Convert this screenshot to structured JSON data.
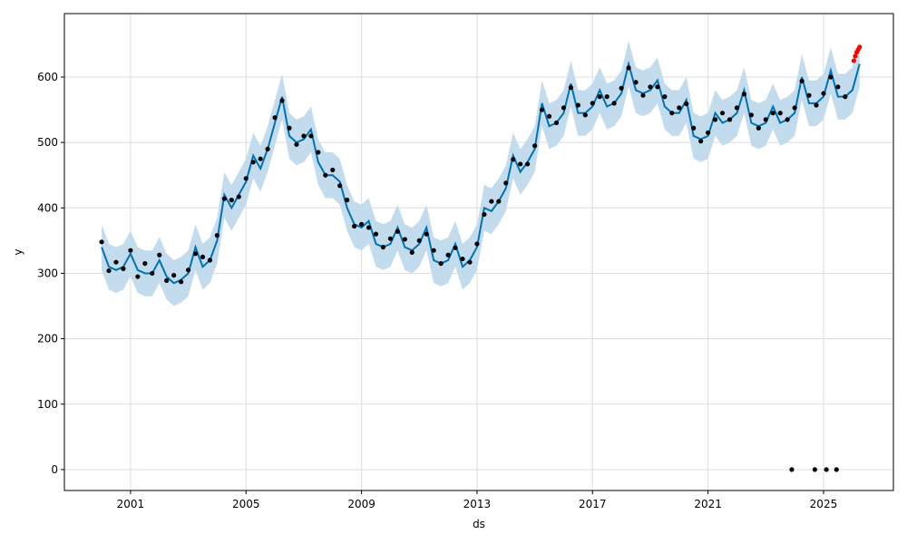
{
  "chart_data": {
    "type": "forecast",
    "x_label": "ds",
    "y_label": "y",
    "xlim": [
      1998.71,
      2027.42
    ],
    "ylim": [
      -32,
      697
    ],
    "xticks": [
      2001,
      2005,
      2009,
      2013,
      2017,
      2021,
      2025
    ],
    "yticks": [
      0,
      100,
      200,
      300,
      400,
      500,
      600
    ],
    "grid": true,
    "x": [
      2000,
      2000.25,
      2000.5,
      2000.75,
      2001,
      2001.25,
      2001.5,
      2001.75,
      2002,
      2002.25,
      2002.5,
      2002.75,
      2003,
      2003.25,
      2003.5,
      2003.75,
      2004,
      2004.25,
      2004.5,
      2004.75,
      2005,
      2005.25,
      2005.5,
      2005.75,
      2006,
      2006.25,
      2006.5,
      2006.75,
      2007,
      2007.25,
      2007.5,
      2007.75,
      2008,
      2008.25,
      2008.5,
      2008.75,
      2009,
      2009.25,
      2009.5,
      2009.75,
      2010,
      2010.25,
      2010.5,
      2010.75,
      2011,
      2011.25,
      2011.5,
      2011.75,
      2012,
      2012.25,
      2012.5,
      2012.75,
      2013,
      2013.25,
      2013.5,
      2013.75,
      2014,
      2014.25,
      2014.5,
      2014.75,
      2015,
      2015.25,
      2015.5,
      2015.75,
      2016,
      2016.25,
      2016.5,
      2016.75,
      2017,
      2017.25,
      2017.5,
      2017.75,
      2018,
      2018.25,
      2018.5,
      2018.75,
      2019,
      2019.25,
      2019.5,
      2019.75,
      2020,
      2020.25,
      2020.5,
      2020.75,
      2021,
      2021.25,
      2021.5,
      2021.75,
      2022,
      2022.25,
      2022.5,
      2022.75,
      2023,
      2023.25,
      2023.5,
      2023.75,
      2024,
      2024.25,
      2024.5,
      2024.75,
      2025,
      2025.25,
      2025.5,
      2025.75,
      2026,
      2026.25
    ],
    "series": [
      {
        "type": "area",
        "color": "#c3dced",
        "lower": [
          305,
          275,
          270,
          275,
          295,
          270,
          265,
          265,
          285,
          260,
          250,
          255,
          265,
          305,
          275,
          285,
          315,
          385,
          365,
          385,
          405,
          445,
          425,
          455,
          495,
          535,
          475,
          465,
          470,
          485,
          435,
          415,
          415,
          405,
          365,
          340,
          335,
          345,
          310,
          305,
          310,
          335,
          305,
          300,
          310,
          335,
          285,
          280,
          285,
          310,
          275,
          285,
          305,
          365,
          360,
          375,
          395,
          445,
          420,
          435,
          455,
          525,
          490,
          495,
          510,
          555,
          510,
          510,
          520,
          545,
          520,
          525,
          540,
          585,
          545,
          540,
          545,
          560,
          520,
          510,
          510,
          530,
          475,
          470,
          475,
          510,
          495,
          500,
          510,
          545,
          495,
          490,
          495,
          520,
          495,
          500,
          510,
          565,
          525,
          525,
          535,
          575,
          535,
          535,
          545,
          585
        ],
        "upper": [
          375,
          345,
          340,
          345,
          365,
          340,
          335,
          335,
          355,
          330,
          320,
          325,
          335,
          375,
          345,
          355,
          385,
          455,
          435,
          455,
          475,
          515,
          495,
          525,
          565,
          605,
          545,
          535,
          540,
          555,
          505,
          485,
          485,
          475,
          435,
          410,
          405,
          415,
          380,
          375,
          380,
          405,
          375,
          370,
          380,
          405,
          355,
          350,
          355,
          380,
          345,
          355,
          375,
          435,
          430,
          445,
          465,
          515,
          490,
          505,
          525,
          595,
          560,
          565,
          580,
          625,
          580,
          580,
          590,
          615,
          590,
          595,
          610,
          655,
          615,
          610,
          615,
          630,
          590,
          580,
          580,
          600,
          545,
          540,
          545,
          580,
          565,
          570,
          580,
          615,
          565,
          560,
          565,
          590,
          565,
          570,
          580,
          635,
          595,
          595,
          605,
          645,
          605,
          605,
          615,
          655
        ]
      },
      {
        "type": "line",
        "color": "#0072B2",
        "values": [
          340,
          310,
          305,
          310,
          330,
          305,
          300,
          300,
          320,
          295,
          285,
          290,
          300,
          340,
          310,
          320,
          350,
          420,
          400,
          420,
          440,
          480,
          460,
          490,
          530,
          570,
          510,
          500,
          505,
          520,
          470,
          450,
          450,
          440,
          400,
          375,
          370,
          380,
          345,
          340,
          345,
          370,
          340,
          335,
          345,
          370,
          320,
          315,
          320,
          345,
          310,
          320,
          340,
          400,
          395,
          410,
          430,
          480,
          455,
          470,
          490,
          560,
          525,
          530,
          545,
          590,
          545,
          545,
          555,
          580,
          555,
          560,
          575,
          620,
          580,
          575,
          580,
          595,
          555,
          545,
          545,
          565,
          510,
          505,
          510,
          545,
          530,
          535,
          545,
          580,
          530,
          525,
          530,
          555,
          530,
          535,
          545,
          600,
          560,
          560,
          570,
          610,
          570,
          570,
          580,
          620
        ]
      },
      {
        "type": "scatter",
        "color": "#000000",
        "values": [
          348,
          304,
          317,
          307,
          335,
          295,
          315,
          300,
          328,
          289,
          297,
          287,
          305,
          330,
          325,
          320,
          358,
          414,
          412,
          417,
          445,
          470,
          475,
          490,
          538,
          564,
          522,
          497,
          510,
          510,
          485,
          450,
          458,
          434,
          412,
          372,
          375,
          370,
          360,
          340,
          353,
          364,
          352,
          332,
          350,
          360,
          335,
          315,
          328,
          339,
          322,
          317,
          345,
          390,
          410,
          410,
          438,
          474,
          467,
          467,
          495,
          550,
          540,
          530,
          553,
          584,
          557,
          542,
          560,
          570,
          570,
          560,
          583,
          614,
          592,
          572,
          585,
          585,
          570,
          545,
          553,
          559,
          522,
          502,
          515,
          535,
          545,
          535,
          553,
          574,
          542,
          522,
          535,
          545,
          545,
          535,
          553,
          594,
          572,
          557,
          575,
          600,
          585,
          570,
          null,
          null
        ]
      },
      {
        "type": "scatter",
        "color": "#000000",
        "x": [
          2023.9,
          2024.7,
          2025.1,
          2025.45
        ],
        "values": [
          0,
          0,
          0,
          0
        ]
      },
      {
        "type": "scatter",
        "color": "#ff0000",
        "x": [
          2026.05,
          2026.1,
          2026.15,
          2026.2,
          2026.25
        ],
        "values": [
          625,
          632,
          638,
          642,
          646
        ]
      }
    ]
  }
}
